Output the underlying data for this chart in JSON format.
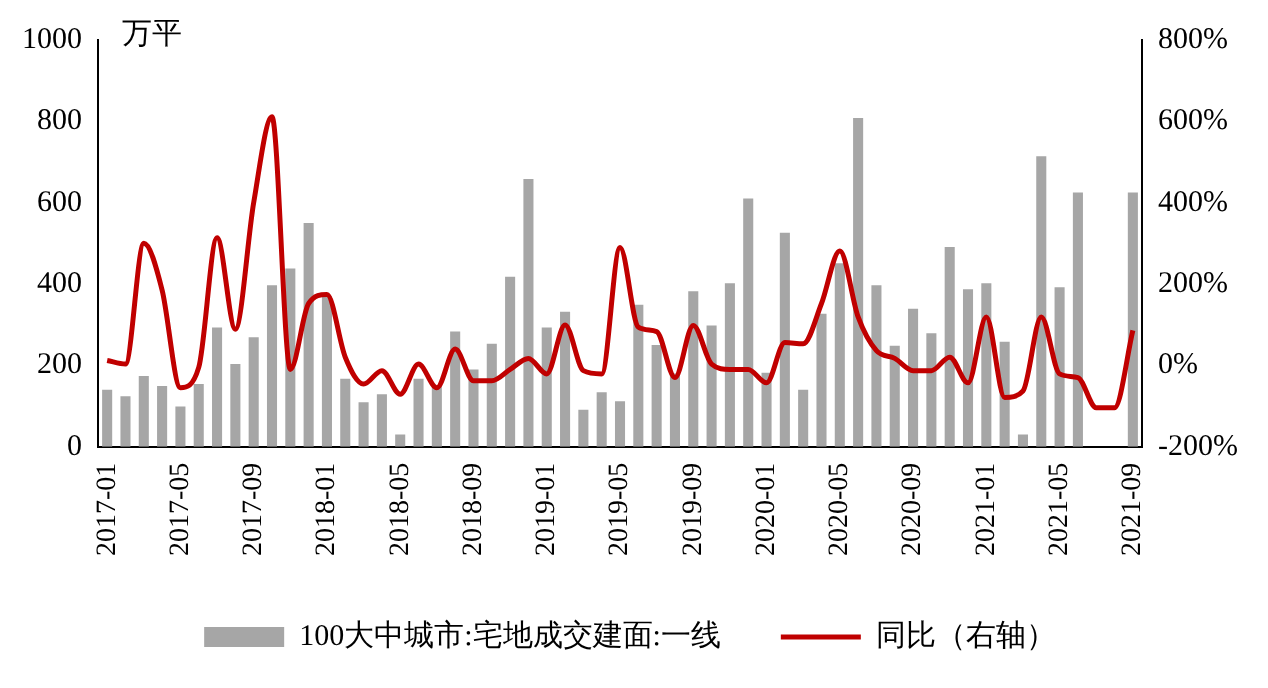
{
  "chart_data": {
    "type": "bar",
    "ylabel": "万平",
    "categories": [
      "2017-01",
      null,
      null,
      null,
      "2017-05",
      null,
      null,
      null,
      "2017-09",
      null,
      null,
      null,
      "2018-01",
      null,
      null,
      null,
      "2018-05",
      null,
      null,
      null,
      "2018-09",
      null,
      null,
      null,
      "2019-01",
      null,
      null,
      null,
      "2019-05",
      null,
      null,
      null,
      "2019-09",
      null,
      null,
      null,
      "2020-01",
      null,
      null,
      null,
      "2020-05",
      null,
      null,
      null,
      "2020-09",
      null,
      null,
      null,
      "2021-01",
      null,
      null,
      null,
      "2021-05",
      null,
      null,
      null,
      "2021-09"
    ],
    "series": [
      {
        "name": "100大中城市:宅地成交建面:一线",
        "color": "#a6a6a6",
        "values": [
          140,
          124,
          174,
          149,
          99,
          154,
          293,
          203,
          269,
          397,
          438,
          550,
          370,
          167,
          109,
          129,
          30,
          167,
          150,
          283,
          190,
          253,
          418,
          658,
          293,
          332,
          91,
          134,
          112,
          349,
          250,
          180,
          382,
          298,
          402,
          610,
          182,
          526,
          140,
          327,
          451,
          808,
          397,
          248,
          339,
          279,
          491,
          387,
          402,
          258,
          30,
          714,
          392,
          625,
          null,
          null,
          625
        ]
      },
      {
        "name": "同比（右轴）",
        "type": "line",
        "axis": "y2",
        "color": "#c00000",
        "values": [
          12,
          3,
          300,
          185,
          -55,
          -5,
          314,
          89,
          400,
          611,
          -10,
          152,
          174,
          20,
          -46,
          -13,
          -71,
          3,
          -55,
          40,
          -38,
          -38,
          -10,
          17,
          -21,
          99,
          -13,
          -21,
          290,
          94,
          83,
          -30,
          98,
          3,
          -10,
          -10,
          -43,
          56,
          53,
          152,
          281,
          119,
          36,
          17,
          -13,
          -13,
          20,
          -43,
          119,
          -79,
          -63,
          119,
          -21,
          -30,
          -104,
          -104,
          86
        ]
      }
    ],
    "ylim": [
      0,
      1000
    ],
    "yticks": [
      0,
      200,
      400,
      600,
      800,
      1000
    ],
    "y2lim": [
      -200,
      800
    ],
    "y2ticks": [
      {
        "value": -200,
        "label": "-200%"
      },
      {
        "value": 0,
        "label": "0%"
      },
      {
        "value": 200,
        "label": "200%"
      },
      {
        "value": 400,
        "label": "400%"
      },
      {
        "value": 600,
        "label": "600%"
      },
      {
        "value": 800,
        "label": "800%"
      }
    ],
    "grid": false,
    "legend": "bottom",
    "marker": "none",
    "line_style": "solid"
  }
}
